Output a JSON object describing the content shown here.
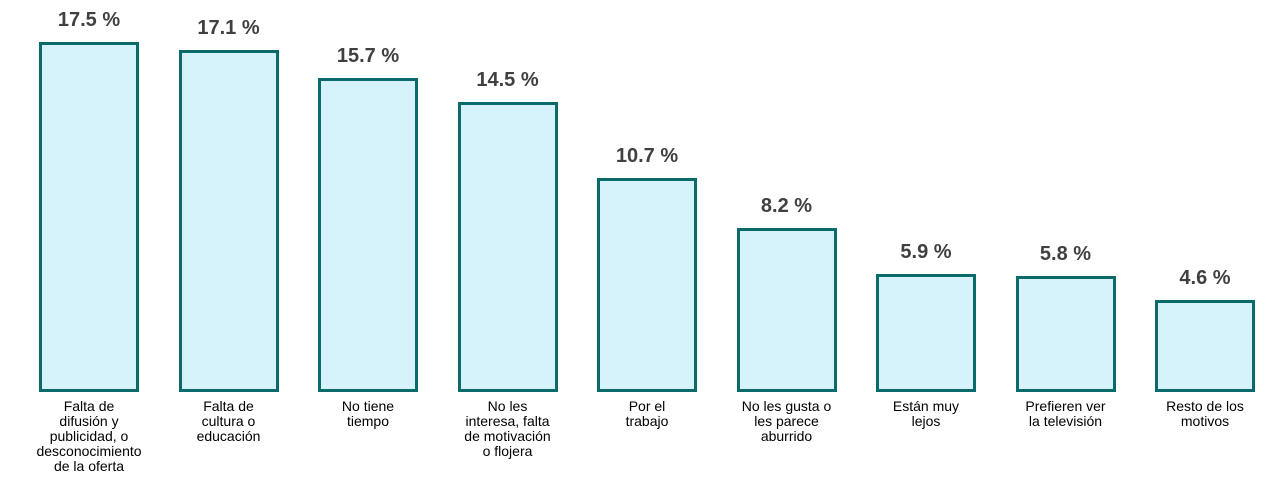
{
  "chart_data": {
    "type": "bar",
    "categories": [
      "Falta de\ndifusión y\npublicidad, o\ndesconocimiento\nde la oferta",
      "Falta de\ncultura o\neducación",
      "No tiene\ntiempo",
      "No les\ninteresa, falta\nde motivación\no flojera",
      "Por el\ntrabajo",
      "No les gusta o\nles parece\naburrido",
      "Están muy\nlejos",
      "Prefieren ver\nla televisión",
      "Resto de los\nmotivos"
    ],
    "values": [
      17.5,
      17.1,
      15.7,
      14.5,
      10.7,
      8.2,
      5.9,
      5.8,
      4.6
    ],
    "value_labels": [
      "17.5 %",
      "17.1 %",
      "15.7 %",
      "14.5 %",
      "10.7 %",
      "8.2 %",
      "5.9 %",
      "5.8 %",
      "4.6 %"
    ],
    "color": "#d6f3fb"
  }
}
